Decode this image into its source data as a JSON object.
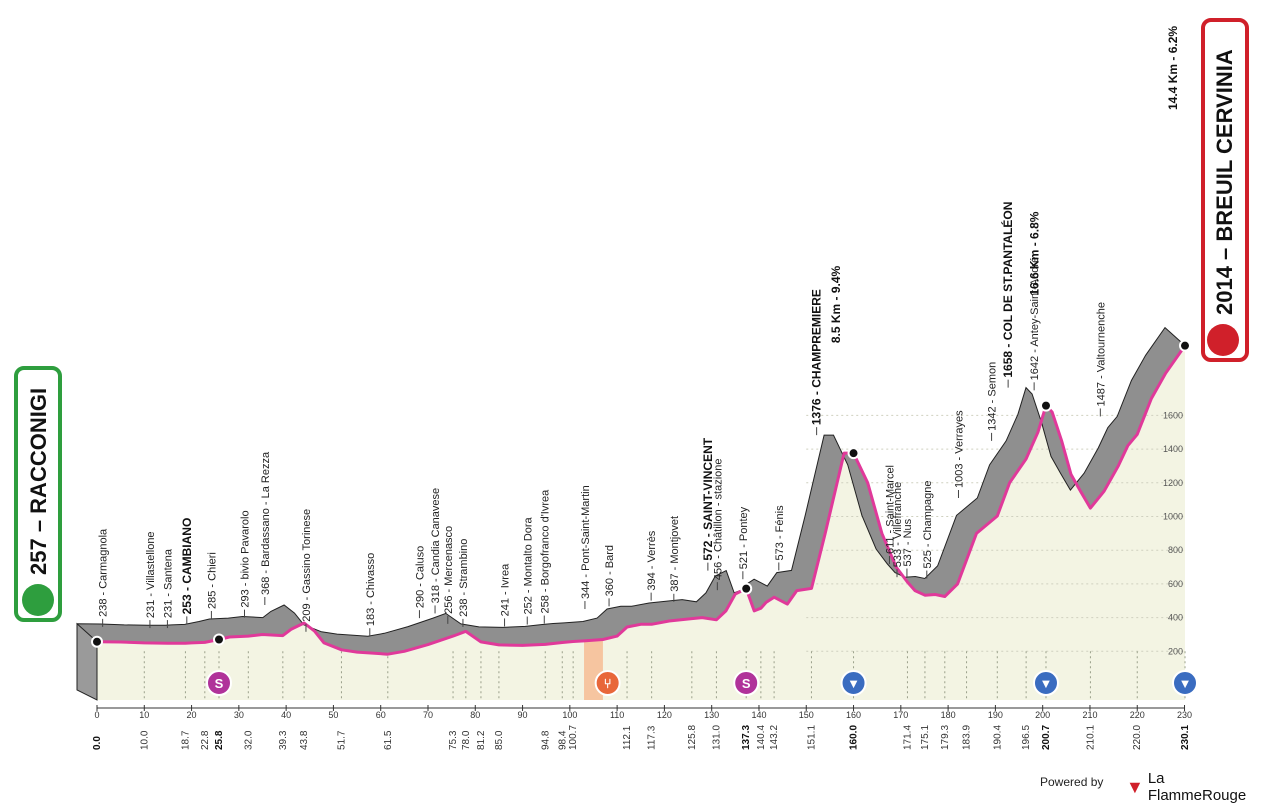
{
  "start": {
    "altitude": "257",
    "name": "RACCONIGI",
    "color": "#2e9e3e"
  },
  "finish": {
    "altitude": "2014",
    "name": "BREUIL CERVINIA",
    "climb_note": "14.4 Km - 6.2%",
    "color": "#d0202a"
  },
  "footer": {
    "powered_by": "Powered by",
    "brand": "La FlammeRouge"
  },
  "colors": {
    "profile_fill": "#8f8f8f",
    "road": "#e0399a",
    "area": "#f3f4e3"
  },
  "chart_data": {
    "type": "area",
    "xlim": [
      0,
      230.1
    ],
    "ylim": [
      0,
      2100
    ],
    "x_ticks": [
      0,
      10,
      20,
      30,
      40,
      50,
      60,
      70,
      80,
      90,
      100,
      110,
      120,
      130,
      140,
      150,
      160,
      170,
      180,
      190,
      200,
      210,
      220,
      230
    ],
    "y_ticks": [
      "200",
      "400",
      "600",
      "800",
      "1000",
      "1200",
      "1400",
      "1600"
    ],
    "profile": [
      [
        0,
        257
      ],
      [
        5,
        255
      ],
      [
        10,
        250
      ],
      [
        15,
        248
      ],
      [
        18.7,
        248
      ],
      [
        20,
        250
      ],
      [
        22.8,
        253
      ],
      [
        25.8,
        270
      ],
      [
        28,
        285
      ],
      [
        32,
        290
      ],
      [
        35,
        300
      ],
      [
        39.3,
        293
      ],
      [
        41,
        330
      ],
      [
        43.8,
        368
      ],
      [
        46,
        320
      ],
      [
        48,
        250
      ],
      [
        51.7,
        209
      ],
      [
        55,
        195
      ],
      [
        61.5,
        183
      ],
      [
        65,
        200
      ],
      [
        70,
        240
      ],
      [
        75.3,
        290
      ],
      [
        78,
        318
      ],
      [
        81.2,
        256
      ],
      [
        85,
        238
      ],
      [
        90,
        235
      ],
      [
        94.8,
        241
      ],
      [
        98.4,
        252
      ],
      [
        100.7,
        258
      ],
      [
        103,
        262
      ],
      [
        107,
        270
      ],
      [
        110,
        290
      ],
      [
        112.1,
        344
      ],
      [
        115,
        360
      ],
      [
        117.3,
        360
      ],
      [
        121,
        380
      ],
      [
        125.8,
        394
      ],
      [
        128,
        400
      ],
      [
        131,
        387
      ],
      [
        133,
        440
      ],
      [
        135,
        540
      ],
      [
        137.3,
        572
      ],
      [
        139,
        440
      ],
      [
        140.4,
        456
      ],
      [
        141.5,
        490
      ],
      [
        143.2,
        521
      ],
      [
        146,
        480
      ],
      [
        148,
        560
      ],
      [
        151.1,
        573
      ],
      [
        154,
        900
      ],
      [
        158,
        1376
      ],
      [
        160,
        1376
      ],
      [
        163,
        1200
      ],
      [
        166,
        900
      ],
      [
        169,
        700
      ],
      [
        171.4,
        611
      ],
      [
        173,
        560
      ],
      [
        175.1,
        533
      ],
      [
        177.3,
        537
      ],
      [
        179.3,
        525
      ],
      [
        182,
        600
      ],
      [
        186,
        900
      ],
      [
        190.4,
        1003
      ],
      [
        193,
        1200
      ],
      [
        196.5,
        1342
      ],
      [
        199,
        1500
      ],
      [
        200.7,
        1658
      ],
      [
        202,
        1620
      ],
      [
        204,
        1450
      ],
      [
        206,
        1250
      ],
      [
        208,
        1150
      ],
      [
        210.1,
        1050
      ],
      [
        213,
        1150
      ],
      [
        216,
        1300
      ],
      [
        218,
        1420
      ],
      [
        220,
        1487
      ],
      [
        223,
        1700
      ],
      [
        226,
        1850
      ],
      [
        230.1,
        2014
      ]
    ],
    "vertical_labels": [
      {
        "km": 5,
        "alt": 238,
        "text": "238 - Carmagnola",
        "bold": false
      },
      {
        "km": 15,
        "alt": 231,
        "text": "231 - Villastellone",
        "bold": false
      },
      {
        "km": 18.7,
        "alt": 231,
        "text": "231 - Santena",
        "bold": false
      },
      {
        "km": 22.8,
        "alt": 253,
        "text": "253 - CAMBIANO",
        "bold": true
      },
      {
        "km": 28,
        "alt": 285,
        "text": "285 - Chieri",
        "bold": false
      },
      {
        "km": 35,
        "alt": 293,
        "text": "293 - bivio Pavarolo",
        "bold": false
      },
      {
        "km": 39.3,
        "alt": 368,
        "text": "368 - Bardassano - La Rezza",
        "bold": false
      },
      {
        "km": 48,
        "alt": 209,
        "text": "209 - Gassino Torinese",
        "bold": false
      },
      {
        "km": 61.5,
        "alt": 183,
        "text": "183 - Chivasso",
        "bold": false
      },
      {
        "km": 72,
        "alt": 290,
        "text": "290 - Caluso",
        "bold": false
      },
      {
        "km": 75.3,
        "alt": 318,
        "text": "318 - Candia Canavese",
        "bold": false
      },
      {
        "km": 78,
        "alt": 256,
        "text": "256 - Mercenasco",
        "bold": false
      },
      {
        "km": 81.2,
        "alt": 238,
        "text": "238 - Strambino",
        "bold": false
      },
      {
        "km": 90,
        "alt": 241,
        "text": "241 - Ivrea",
        "bold": false
      },
      {
        "km": 94.8,
        "alt": 252,
        "text": "252 - Montalto Dora",
        "bold": false
      },
      {
        "km": 98.4,
        "alt": 258,
        "text": "258 - Borgofranco d'Ivrea",
        "bold": false
      },
      {
        "km": 107,
        "alt": 344,
        "text": "344 - Pont-Saint-Martin",
        "bold": false
      },
      {
        "km": 112.1,
        "alt": 360,
        "text": "360 - Bard",
        "bold": false
      },
      {
        "km": 121,
        "alt": 394,
        "text": "394 - Verrès",
        "bold": false
      },
      {
        "km": 125.8,
        "alt": 387,
        "text": "387 - Montjovet",
        "bold": false
      },
      {
        "km": 133,
        "alt": 572,
        "text": "572 - SAINT-VINCENT",
        "bold": true
      },
      {
        "km": 135,
        "alt": 456,
        "text": "456 - Châtillon - stazione",
        "bold": false
      },
      {
        "km": 140.4,
        "alt": 521,
        "text": "521 - Pontey",
        "bold": false
      },
      {
        "km": 148,
        "alt": 573,
        "text": "573 - Fénis",
        "bold": false
      },
      {
        "km": 156,
        "alt": 1376,
        "text": "1376 - CHAMPREMIERE",
        "bold": true
      },
      {
        "km": 171.4,
        "alt": 611,
        "text": "611 - Saint-Marcel",
        "bold": false
      },
      {
        "km": 173,
        "alt": 533,
        "text": "533 - Villefranche",
        "bold": false
      },
      {
        "km": 175.1,
        "alt": 537,
        "text": "537 - Nus",
        "bold": false
      },
      {
        "km": 179.3,
        "alt": 525,
        "text": "525 - Champagne",
        "bold": false
      },
      {
        "km": 186,
        "alt": 1003,
        "text": "1003 - Verrayes",
        "bold": false
      },
      {
        "km": 193,
        "alt": 1342,
        "text": "1342 - Semon",
        "bold": false
      },
      {
        "km": 196.5,
        "alt": 1658,
        "text": "1658 - COL DE ST.PANTALÉON",
        "bold": true
      },
      {
        "km": 202,
        "alt": 1642,
        "text": "1642 - Antey-Saint-André",
        "bold": false
      },
      {
        "km": 216,
        "alt": 1487,
        "text": "1487 - Valtournenche",
        "bold": false
      }
    ],
    "climb_notes": [
      {
        "km": 158,
        "text": "8.5 Km - 9.4%"
      },
      {
        "km": 200,
        "text": "16.6 Km - 6.8%"
      }
    ],
    "km_labels": [
      {
        "km": 0,
        "text": "0.0",
        "bold": true
      },
      {
        "km": 10,
        "text": "10.0"
      },
      {
        "km": 18.7,
        "text": "18.7"
      },
      {
        "km": 22.8,
        "text": "22.8"
      },
      {
        "km": 25.8,
        "text": "25.8",
        "bold": true
      },
      {
        "km": 32,
        "text": "32.0"
      },
      {
        "km": 39.3,
        "text": "39.3"
      },
      {
        "km": 43.8,
        "text": "43.8"
      },
      {
        "km": 51.7,
        "text": "51.7"
      },
      {
        "km": 61.5,
        "text": "61.5"
      },
      {
        "km": 75.3,
        "text": "75.3"
      },
      {
        "km": 78,
        "text": "78.0"
      },
      {
        "km": 81.2,
        "text": "81.2"
      },
      {
        "km": 85,
        "text": "85.0"
      },
      {
        "km": 94.8,
        "text": "94.8"
      },
      {
        "km": 98.4,
        "text": "98.4"
      },
      {
        "km": 100.7,
        "text": "100.7"
      },
      {
        "km": 112.1,
        "text": "112.1"
      },
      {
        "km": 117.3,
        "text": "117.3"
      },
      {
        "km": 125.8,
        "text": "125.8"
      },
      {
        "km": 131,
        "text": "131.0"
      },
      {
        "km": 137.3,
        "text": "137.3",
        "bold": true
      },
      {
        "km": 140.4,
        "text": "140.4"
      },
      {
        "km": 143.2,
        "text": "143.2"
      },
      {
        "km": 151.1,
        "text": "151.1"
      },
      {
        "km": 160,
        "text": "160.0",
        "bold": true
      },
      {
        "km": 171.4,
        "text": "171.4"
      },
      {
        "km": 175.1,
        "text": "175.1"
      },
      {
        "km": 179.3,
        "text": "179.3"
      },
      {
        "km": 183.9,
        "text": "183.9"
      },
      {
        "km": 190.4,
        "text": "190.4"
      },
      {
        "km": 196.5,
        "text": "196.5"
      },
      {
        "km": 200.7,
        "text": "200.7",
        "bold": true
      },
      {
        "km": 210.1,
        "text": "210.1"
      },
      {
        "km": 220,
        "text": "220.0"
      },
      {
        "km": 230.1,
        "text": "230.1",
        "bold": true
      }
    ],
    "markers": [
      {
        "km": 25.8,
        "type": "sprint-icon",
        "symbol": "S",
        "color": "#b0329a"
      },
      {
        "km": 108,
        "type": "feed-zone-icon",
        "symbol": "⑂",
        "color": "#e8673a"
      },
      {
        "km": 137.3,
        "type": "sprint-icon",
        "symbol": "S",
        "color": "#b0329a"
      },
      {
        "km": 160,
        "type": "kom-icon",
        "symbol": "▼",
        "color": "#3a6cc0"
      },
      {
        "km": 200.7,
        "type": "kom-icon",
        "symbol": "▼",
        "color": "#3a6cc0"
      },
      {
        "km": 230.1,
        "type": "kom-icon",
        "symbol": "▼",
        "color": "#3a6cc0"
      }
    ],
    "feed_zone": [
      103,
      107
    ]
  }
}
